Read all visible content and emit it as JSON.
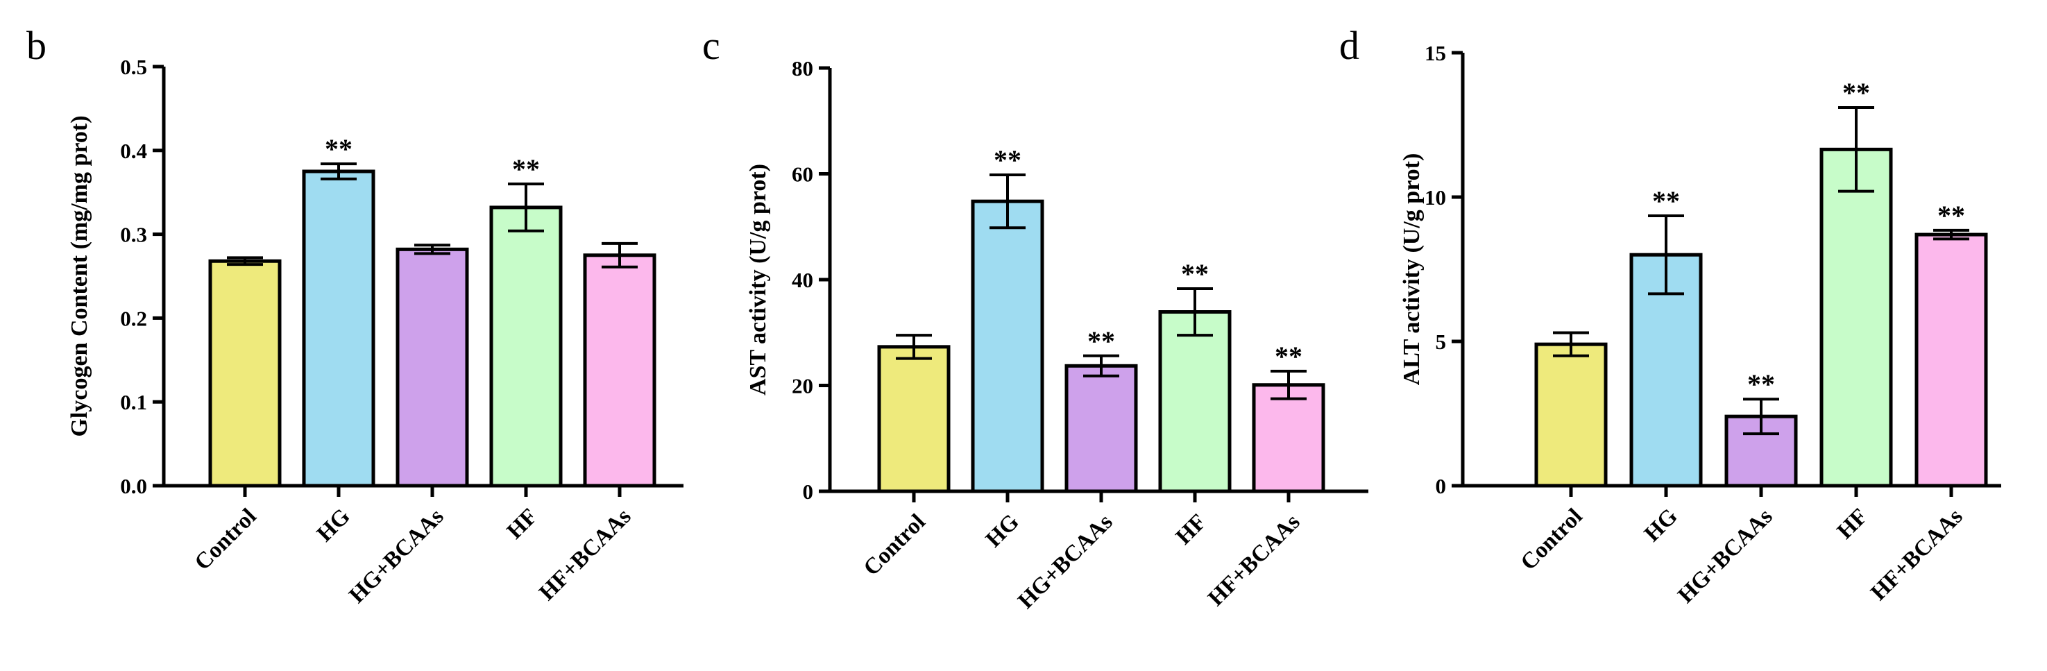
{
  "chart_data": [
    {
      "type": "bar",
      "panel": "b",
      "title": "",
      "xlabel": "",
      "ylabel": "Glycogen Content  (mg/mg prot)",
      "ylim": [
        0,
        0.5
      ],
      "yticks": [
        0.0,
        0.1,
        0.2,
        0.3,
        0.4,
        0.5
      ],
      "ytick_labels": [
        "0.0",
        "0.1",
        "0.2",
        "0.3",
        "0.4",
        "0.5"
      ],
      "categories": [
        "Control",
        "HG",
        "HG+BCAAs",
        "HF",
        "HF+BCAAs"
      ],
      "values": [
        0.268,
        0.375,
        0.282,
        0.332,
        0.275
      ],
      "errors": [
        0.004,
        0.009,
        0.005,
        0.028,
        0.014
      ],
      "significance": [
        "",
        "**",
        "",
        "**",
        ""
      ],
      "colors": [
        "#eeea7c",
        "#9fdcf1",
        "#cea1eb",
        "#c7fcc9",
        "#fcb8ec"
      ]
    },
    {
      "type": "bar",
      "panel": "c",
      "title": "",
      "xlabel": "",
      "ylabel": "AST activity (U/g prot)",
      "ylim": [
        0,
        80
      ],
      "yticks": [
        0,
        20,
        40,
        60,
        80
      ],
      "ytick_labels": [
        "0",
        "20",
        "40",
        "60",
        "80"
      ],
      "categories": [
        "Control",
        "HG",
        "HG+BCAAs",
        "HF",
        "HF+BCAAs"
      ],
      "values": [
        27.3,
        54.8,
        23.7,
        33.9,
        20.1
      ],
      "errors": [
        2.2,
        5.0,
        1.9,
        4.4,
        2.6
      ],
      "significance": [
        "",
        "**",
        "**",
        "**",
        "**"
      ],
      "colors": [
        "#eeea7c",
        "#9fdcf1",
        "#cea1eb",
        "#c7fcc9",
        "#fcb8ec"
      ]
    },
    {
      "type": "bar",
      "panel": "d",
      "title": "",
      "xlabel": "",
      "ylabel": "ALT activity (U/g prot)",
      "ylim": [
        0,
        15
      ],
      "yticks": [
        0,
        5,
        10,
        15
      ],
      "ytick_labels": [
        "0",
        "5",
        "10",
        "15"
      ],
      "categories": [
        "Control",
        "HG",
        "HG+BCAAs",
        "HF",
        "HF+BCAAs"
      ],
      "values": [
        4.9,
        8.0,
        2.4,
        11.65,
        8.7
      ],
      "errors": [
        0.4,
        1.35,
        0.6,
        1.45,
        0.15
      ],
      "significance": [
        "",
        "**",
        "**",
        "**",
        "**"
      ],
      "colors": [
        "#eeea7c",
        "#9fdcf1",
        "#cea1eb",
        "#c7fcc9",
        "#fcb8ec"
      ]
    }
  ]
}
